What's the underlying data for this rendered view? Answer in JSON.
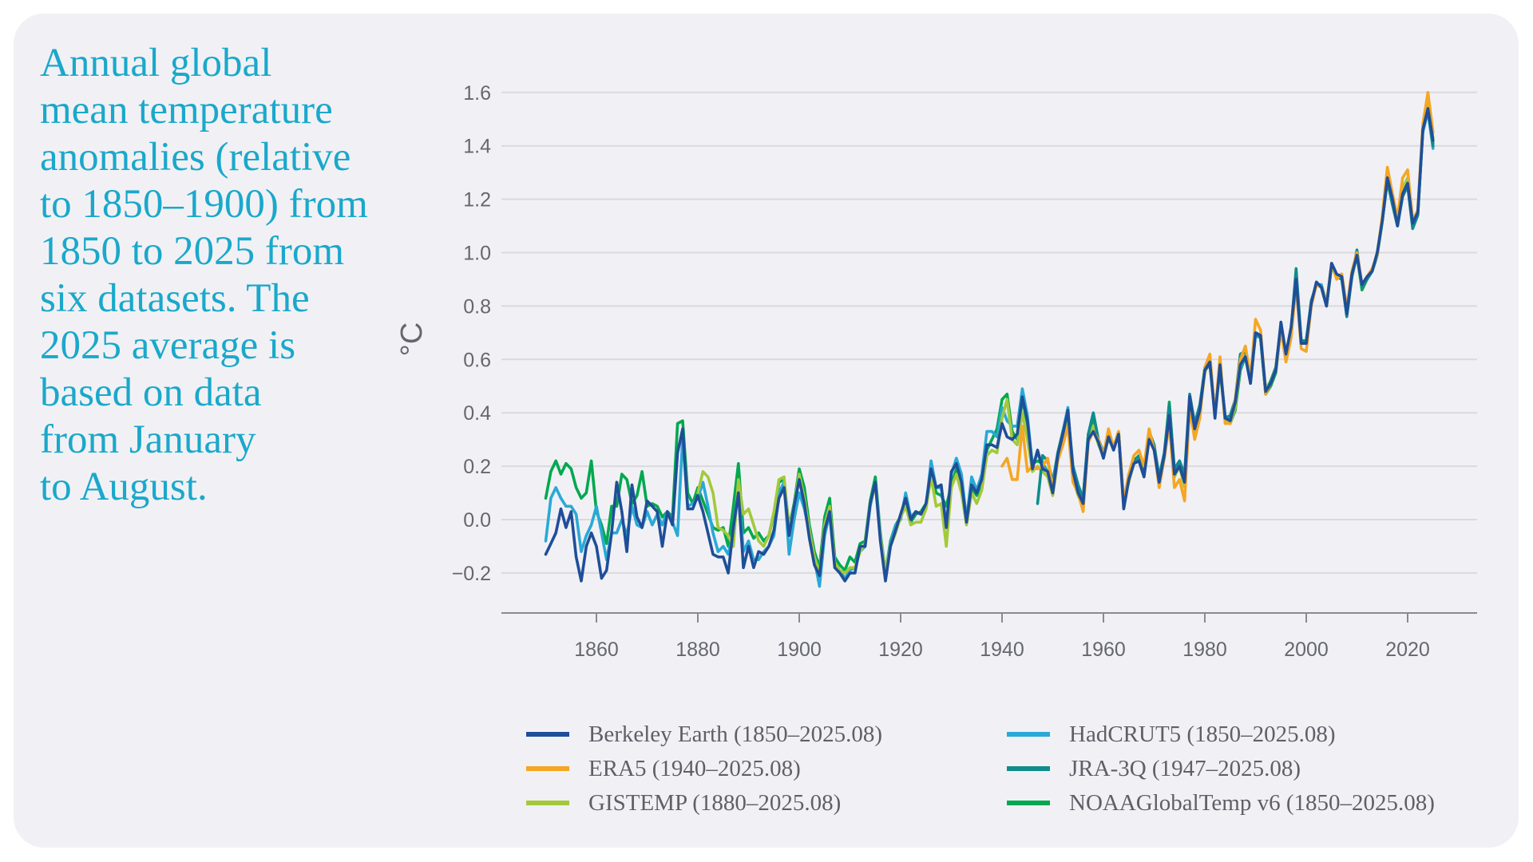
{
  "title_lines": [
    "Annual global",
    "mean temperature",
    "anomalies (relative",
    "to 1850–1900) from",
    "1850 to 2025 from",
    "six datasets. The",
    "2025 average is",
    "based on data",
    "from January",
    "to August."
  ],
  "chart_data": {
    "type": "line",
    "ylabel": "°C",
    "xlabel": "",
    "xlim": [
      1845,
      2038
    ],
    "ylim": [
      -0.3,
      1.7
    ],
    "grid": true,
    "legend_placement": "bottom",
    "x_ticks": [
      1860,
      1880,
      1900,
      1920,
      1940,
      1960,
      1980,
      2000,
      2020
    ],
    "x_tick_labels": [
      "1860",
      "1880",
      "1900",
      "1920",
      "1940",
      "1960",
      "1980",
      "2000",
      "2020"
    ],
    "y_ticks": [
      -0.2,
      0.0,
      0.2,
      0.4,
      0.6,
      0.8,
      1.0,
      1.2,
      1.4,
      1.6
    ],
    "y_tick_labels": [
      "−0.2",
      "0.0",
      "0.2",
      "0.4",
      "0.6",
      "0.8",
      "1.0",
      "1.2",
      "1.4",
      "1.6"
    ],
    "series": [
      {
        "name": "NOAAGlobalTemp v6 (1850–2025.08)",
        "color": "#00a84f",
        "start": 1850,
        "values": [
          0.08,
          0.18,
          0.22,
          0.17,
          0.21,
          0.19,
          0.12,
          0.08,
          0.1,
          0.22,
          0.03,
          -0.02,
          -0.09,
          0.05,
          0.05,
          0.17,
          0.15,
          0.06,
          0.09,
          0.18,
          0.05,
          0.06,
          0.05,
          0.01,
          0.03,
          0.01,
          0.36,
          0.37,
          0.1,
          0.06,
          0.12,
          0.07,
          0.02,
          -0.03,
          -0.04,
          -0.03,
          -0.1,
          0.05,
          0.21,
          -0.05,
          -0.03,
          -0.07,
          -0.05,
          -0.08,
          -0.06,
          0.02,
          0.14,
          0.15,
          -0.03,
          0.06,
          0.19,
          0.12,
          -0.02,
          -0.12,
          -0.18,
          0.01,
          0.08,
          -0.14,
          -0.17,
          -0.19,
          -0.14,
          -0.16,
          -0.09,
          -0.08,
          0.07,
          0.16,
          -0.05,
          -0.2,
          -0.08,
          -0.02,
          0.01,
          0.08,
          -0.01,
          0.02,
          0.03,
          0.06,
          0.19,
          0.1,
          0.09,
          0.05,
          0.13,
          0.19,
          0.15,
          -0.01,
          0.12,
          0.09,
          0.12,
          0.26,
          0.3,
          0.34,
          0.45,
          0.47,
          0.33,
          0.3,
          0.45,
          0.36,
          0.21,
          0.22,
          0.21,
          0.18,
          0.12,
          0.23,
          0.31,
          0.38,
          0.18,
          0.12,
          0.08,
          0.32,
          0.38,
          0.3,
          0.25,
          0.31,
          0.27,
          0.33,
          0.06,
          0.15,
          0.23,
          0.22,
          0.18,
          0.33,
          0.27,
          0.15,
          0.24,
          0.44,
          0.18,
          0.21,
          0.16,
          0.45,
          0.34,
          0.42,
          0.57,
          0.59,
          0.4,
          0.56,
          0.39,
          0.36,
          0.41,
          0.56,
          0.61,
          0.52,
          0.7,
          0.68,
          0.47,
          0.5,
          0.55,
          0.72,
          0.6,
          0.71,
          0.92,
          0.66,
          0.67,
          0.81,
          0.88,
          0.87,
          0.8,
          0.95,
          0.91,
          0.9,
          0.78,
          0.91,
          0.99,
          0.86,
          0.9,
          0.93,
          0.99,
          1.12,
          1.27,
          1.18,
          1.1,
          1.22,
          1.26,
          1.1,
          1.14,
          1.46,
          1.54,
          1.41
        ]
      },
      {
        "name": "HadCRUT5 (1850–2025.08)",
        "color": "#29a9d6",
        "start": 1850,
        "values": [
          -0.08,
          0.08,
          0.12,
          0.08,
          0.05,
          0.05,
          0.02,
          -0.12,
          -0.06,
          -0.02,
          0.05,
          -0.05,
          -0.15,
          -0.05,
          -0.05,
          0.0,
          -0.06,
          0.05,
          -0.02,
          -0.03,
          0.03,
          -0.02,
          0.02,
          -0.02,
          0.03,
          -0.01,
          -0.06,
          0.31,
          0.05,
          0.06,
          0.08,
          0.14,
          0.05,
          -0.05,
          -0.12,
          -0.1,
          -0.13,
          -0.05,
          0.12,
          -0.12,
          -0.08,
          -0.15,
          -0.15,
          -0.12,
          -0.1,
          -0.06,
          0.1,
          0.14,
          -0.13,
          0.0,
          0.1,
          0.04,
          -0.05,
          -0.15,
          -0.25,
          -0.06,
          0.02,
          -0.18,
          -0.19,
          -0.22,
          -0.19,
          -0.18,
          -0.12,
          -0.1,
          0.05,
          0.14,
          -0.05,
          -0.2,
          -0.09,
          -0.02,
          0.0,
          0.1,
          0.01,
          0.03,
          0.02,
          0.05,
          0.22,
          0.12,
          0.12,
          -0.02,
          0.17,
          0.23,
          0.17,
          0.0,
          0.16,
          0.11,
          0.17,
          0.33,
          0.33,
          0.31,
          0.42,
          0.37,
          0.35,
          0.35,
          0.49,
          0.39,
          0.2,
          0.25,
          0.2,
          0.18,
          0.11,
          0.25,
          0.33,
          0.42,
          0.17,
          0.11,
          0.07,
          0.31,
          0.34,
          0.3,
          0.25,
          0.31,
          0.27,
          0.32,
          0.06,
          0.15,
          0.22,
          0.22,
          0.17,
          0.31,
          0.26,
          0.15,
          0.23,
          0.4,
          0.16,
          0.21,
          0.13,
          0.44,
          0.33,
          0.42,
          0.56,
          0.59,
          0.4,
          0.58,
          0.39,
          0.37,
          0.44,
          0.57,
          0.61,
          0.52,
          0.69,
          0.68,
          0.47,
          0.51,
          0.56,
          0.72,
          0.61,
          0.71,
          0.91,
          0.67,
          0.67,
          0.81,
          0.88,
          0.88,
          0.81,
          0.95,
          0.91,
          0.91,
          0.78,
          0.92,
          1.0,
          0.87,
          0.91,
          0.93,
          0.99,
          1.13,
          1.27,
          1.19,
          1.1,
          1.23,
          1.26,
          1.1,
          1.15,
          1.45,
          1.53,
          1.39
        ]
      },
      {
        "name": "GISTEMP (1880–2025.08)",
        "color": "#a3c93a",
        "start": 1880,
        "values": [
          0.1,
          0.18,
          0.16,
          0.1,
          -0.03,
          -0.04,
          -0.06,
          -0.1,
          0.15,
          0.02,
          0.04,
          -0.02,
          -0.08,
          -0.1,
          -0.06,
          0.03,
          0.15,
          0.16,
          -0.04,
          0.05,
          0.17,
          0.08,
          -0.04,
          -0.14,
          -0.2,
          -0.02,
          0.05,
          -0.16,
          -0.19,
          -0.2,
          -0.18,
          -0.18,
          -0.12,
          -0.09,
          0.06,
          0.13,
          -0.06,
          -0.2,
          -0.1,
          -0.05,
          0.01,
          0.05,
          -0.02,
          -0.01,
          -0.01,
          0.04,
          0.16,
          0.05,
          0.06,
          -0.1,
          0.12,
          0.17,
          0.1,
          -0.02,
          0.1,
          0.06,
          0.11,
          0.24,
          0.26,
          0.25,
          0.38,
          0.45,
          0.3,
          0.28,
          0.4,
          0.3,
          0.18,
          0.2,
          0.18,
          0.16,
          0.09,
          0.22,
          0.3,
          0.38,
          0.15,
          0.09,
          0.05,
          0.3,
          0.35,
          0.28,
          0.24,
          0.3,
          0.27,
          0.32,
          0.07,
          0.14,
          0.21,
          0.22,
          0.16,
          0.31,
          0.26,
          0.14,
          0.24,
          0.42,
          0.16,
          0.2,
          0.12,
          0.43,
          0.31,
          0.4,
          0.55,
          0.6,
          0.39,
          0.57,
          0.37,
          0.36,
          0.42,
          0.58,
          0.63,
          0.52,
          0.7,
          0.69,
          0.49,
          0.52,
          0.57,
          0.73,
          0.62,
          0.72,
          0.9,
          0.67,
          0.67,
          0.81,
          0.88,
          0.87,
          0.8,
          0.95,
          0.91,
          0.92,
          0.78,
          0.92,
          1.0,
          0.87,
          0.9,
          0.93,
          1.0,
          1.13,
          1.29,
          1.2,
          1.11,
          1.24,
          1.28,
          1.11,
          1.15,
          1.47,
          1.56,
          1.43
        ]
      },
      {
        "name": "JRA-3Q (1947–2025.08)",
        "color": "#0f8c8c",
        "start": 1947,
        "values": [
          0.06,
          0.24,
          0.22,
          0.14,
          0.25,
          0.33,
          0.4,
          0.2,
          0.13,
          0.08,
          0.32,
          0.4,
          0.3,
          0.25,
          0.32,
          0.27,
          0.32,
          0.06,
          0.17,
          0.22,
          0.24,
          0.18,
          0.33,
          0.28,
          0.16,
          0.25,
          0.43,
          0.19,
          0.22,
          0.17,
          0.47,
          0.36,
          0.43,
          0.56,
          0.58,
          0.4,
          0.57,
          0.38,
          0.39,
          0.45,
          0.62,
          0.63,
          0.52,
          0.7,
          0.68,
          0.47,
          0.52,
          0.57,
          0.73,
          0.62,
          0.71,
          0.94,
          0.67,
          0.67,
          0.82,
          0.88,
          0.87,
          0.8,
          0.96,
          0.91,
          0.9,
          0.76,
          0.91,
          1.01,
          0.87,
          0.9,
          0.93,
          0.99,
          1.12,
          1.27,
          1.18,
          1.1,
          1.21,
          1.25,
          1.09,
          1.14,
          1.46,
          1.53,
          1.4
        ]
      },
      {
        "name": "ERA5 (1940–2025.08)",
        "color": "#f5a623",
        "start": 1940,
        "values": [
          0.2,
          0.23,
          0.15,
          0.15,
          0.35,
          0.18,
          0.2,
          0.19,
          0.2,
          0.23,
          0.12,
          0.22,
          0.28,
          0.35,
          0.14,
          0.1,
          0.03,
          0.29,
          0.33,
          0.3,
          0.24,
          0.34,
          0.27,
          0.33,
          0.07,
          0.17,
          0.24,
          0.26,
          0.2,
          0.34,
          0.26,
          0.12,
          0.23,
          0.36,
          0.12,
          0.15,
          0.07,
          0.42,
          0.3,
          0.38,
          0.57,
          0.62,
          0.39,
          0.61,
          0.36,
          0.36,
          0.45,
          0.6,
          0.65,
          0.53,
          0.75,
          0.71,
          0.47,
          0.51,
          0.56,
          0.71,
          0.59,
          0.68,
          0.88,
          0.64,
          0.63,
          0.8,
          0.88,
          0.87,
          0.81,
          0.96,
          0.9,
          0.92,
          0.79,
          0.93,
          1.0,
          0.88,
          0.91,
          0.94,
          0.99,
          1.14,
          1.32,
          1.22,
          1.13,
          1.28,
          1.31,
          1.12,
          1.16,
          1.48,
          1.6,
          1.45
        ]
      },
      {
        "name": "Berkeley Earth (1850–2025.08)",
        "color": "#1f4e99",
        "start": 1850,
        "values": [
          -0.13,
          -0.09,
          -0.05,
          0.04,
          -0.03,
          0.03,
          -0.14,
          -0.23,
          -0.1,
          -0.05,
          -0.1,
          -0.22,
          -0.19,
          -0.05,
          0.14,
          0.03,
          -0.12,
          0.13,
          0.01,
          -0.03,
          0.07,
          0.05,
          0.03,
          -0.1,
          0.03,
          -0.02,
          0.25,
          0.34,
          0.04,
          0.04,
          0.09,
          0.03,
          -0.05,
          -0.13,
          -0.14,
          -0.14,
          -0.2,
          -0.03,
          0.1,
          -0.18,
          -0.1,
          -0.18,
          -0.12,
          -0.13,
          -0.1,
          -0.04,
          0.08,
          0.12,
          -0.06,
          0.05,
          0.15,
          0.06,
          -0.07,
          -0.17,
          -0.21,
          -0.04,
          0.03,
          -0.18,
          -0.2,
          -0.23,
          -0.2,
          -0.2,
          -0.1,
          -0.1,
          0.06,
          0.14,
          -0.08,
          -0.23,
          -0.1,
          -0.04,
          0.02,
          0.08,
          0.0,
          0.03,
          0.02,
          0.06,
          0.19,
          0.12,
          0.13,
          -0.03,
          0.18,
          0.21,
          0.14,
          -0.01,
          0.13,
          0.1,
          0.15,
          0.28,
          0.28,
          0.27,
          0.36,
          0.31,
          0.3,
          0.32,
          0.46,
          0.37,
          0.19,
          0.26,
          0.19,
          0.18,
          0.1,
          0.24,
          0.32,
          0.41,
          0.18,
          0.1,
          0.06,
          0.3,
          0.33,
          0.29,
          0.23,
          0.31,
          0.26,
          0.32,
          0.04,
          0.15,
          0.21,
          0.22,
          0.16,
          0.3,
          0.26,
          0.14,
          0.24,
          0.39,
          0.17,
          0.2,
          0.14,
          0.46,
          0.34,
          0.41,
          0.56,
          0.59,
          0.38,
          0.58,
          0.38,
          0.37,
          0.44,
          0.58,
          0.61,
          0.51,
          0.7,
          0.69,
          0.48,
          0.51,
          0.56,
          0.74,
          0.62,
          0.72,
          0.9,
          0.66,
          0.66,
          0.81,
          0.89,
          0.87,
          0.8,
          0.96,
          0.92,
          0.91,
          0.77,
          0.92,
          0.99,
          0.88,
          0.91,
          0.93,
          1.0,
          1.12,
          1.28,
          1.2,
          1.1,
          1.22,
          1.26,
          1.11,
          1.15,
          1.46,
          1.54,
          1.42
        ]
      }
    ]
  },
  "legend": [
    {
      "label": "Berkeley Earth (1850–2025.08)",
      "color": "#1f4e99"
    },
    {
      "label": "ERA5 (1940–2025.08)",
      "color": "#f5a623"
    },
    {
      "label": "GISTEMP (1880–2025.08)",
      "color": "#a3c93a"
    },
    {
      "label": "HadCRUT5 (1850–2025.08)",
      "color": "#29a9d6"
    },
    {
      "label": "JRA-3Q (1947–2025.08)",
      "color": "#0f8c8c"
    },
    {
      "label": "NOAAGlobalTemp v6 (1850–2025.08)",
      "color": "#00a84f"
    }
  ],
  "colors": {
    "title": "#1aa8cb",
    "panel": "#f1f1f5",
    "grid": "#d9d9de",
    "axis": "#8a8a92"
  }
}
